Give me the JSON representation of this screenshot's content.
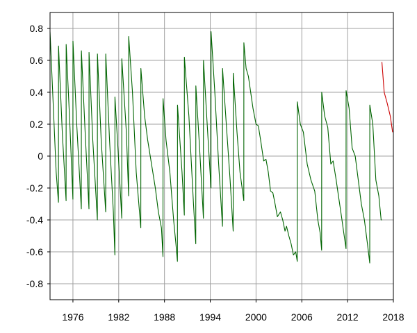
{
  "chart_data": {
    "type": "line",
    "title": "",
    "xlabel": "",
    "ylabel": "",
    "xlim": [
      1973,
      2018
    ],
    "ylim": [
      -0.9,
      0.9
    ],
    "grid": true,
    "legend": "none",
    "x_ticks": [
      1976,
      1982,
      1988,
      1994,
      2000,
      2006,
      2012,
      2018
    ],
    "x_tick_labels": [
      "1976",
      "1982",
      "1988",
      "1994",
      "2000",
      "2006",
      "2012",
      "2018"
    ],
    "y_ticks": [
      0.8,
      0.6,
      0.4,
      0.2,
      0,
      -0.2,
      -0.4,
      -0.6,
      -0.8
    ],
    "y_tick_labels": [
      "0.8",
      "0.6",
      "0.4",
      "0.2",
      "0",
      "-0.2",
      "-0.4",
      "-0.6",
      "-0.8"
    ],
    "series": [
      {
        "color": "#006400",
        "points": [
          [
            1973.0,
            0.78
          ],
          [
            1973.35,
            0.4
          ],
          [
            1973.8,
            -0.1
          ],
          [
            1974.1,
            -0.29
          ],
          [
            1974.11,
            0.69
          ],
          [
            1974.6,
            0.15
          ],
          [
            1975.1,
            -0.28
          ],
          [
            1975.11,
            0.7
          ],
          [
            1975.6,
            0.2
          ],
          [
            1976.0,
            -0.27
          ],
          [
            1976.01,
            0.72
          ],
          [
            1976.5,
            0.2
          ],
          [
            1977.1,
            -0.33
          ],
          [
            1977.11,
            0.66
          ],
          [
            1977.6,
            0.15
          ],
          [
            1978.1,
            -0.33
          ],
          [
            1978.11,
            0.65
          ],
          [
            1978.6,
            0.1
          ],
          [
            1979.2,
            -0.4
          ],
          [
            1979.21,
            0.64
          ],
          [
            1979.7,
            0.1
          ],
          [
            1980.3,
            -0.35
          ],
          [
            1980.31,
            0.64
          ],
          [
            1980.8,
            0.1
          ],
          [
            1981.3,
            -0.35
          ],
          [
            1981.5,
            -0.62
          ],
          [
            1981.51,
            0.37
          ],
          [
            1981.9,
            0.05
          ],
          [
            1982.4,
            -0.39
          ],
          [
            1982.41,
            0.61
          ],
          [
            1983.0,
            0.15
          ],
          [
            1983.3,
            -0.25
          ],
          [
            1983.31,
            0.75
          ],
          [
            1983.8,
            0.4
          ],
          [
            1984.3,
            -0.1
          ],
          [
            1984.9,
            -0.45
          ],
          [
            1984.91,
            0.55
          ],
          [
            1985.4,
            0.25
          ],
          [
            1985.8,
            0.1
          ],
          [
            1986.3,
            -0.05
          ],
          [
            1986.8,
            -0.2
          ],
          [
            1987.2,
            -0.35
          ],
          [
            1987.6,
            -0.45
          ],
          [
            1987.8,
            -0.63
          ],
          [
            1987.81,
            0.36
          ],
          [
            1988.2,
            0.1
          ],
          [
            1988.7,
            -0.1
          ],
          [
            1989.2,
            -0.4
          ],
          [
            1989.5,
            -0.55
          ],
          [
            1989.7,
            -0.66
          ],
          [
            1989.71,
            0.32
          ],
          [
            1990.3,
            -0.1
          ],
          [
            1990.6,
            -0.37
          ],
          [
            1990.61,
            0.62
          ],
          [
            1991.2,
            0.25
          ],
          [
            1991.8,
            -0.3
          ],
          [
            1992.1,
            -0.55
          ],
          [
            1992.11,
            0.44
          ],
          [
            1992.6,
            0.05
          ],
          [
            1993.1,
            -0.39
          ],
          [
            1993.11,
            0.6
          ],
          [
            1993.6,
            0.2
          ],
          [
            1994.1,
            -0.2
          ],
          [
            1994.11,
            0.78
          ],
          [
            1994.6,
            0.4
          ],
          [
            1995.1,
            -0.05
          ],
          [
            1995.6,
            -0.44
          ],
          [
            1995.61,
            0.55
          ],
          [
            1996.1,
            0.2
          ],
          [
            1996.6,
            -0.15
          ],
          [
            1997.0,
            -0.47
          ],
          [
            1997.01,
            0.52
          ],
          [
            1997.5,
            0.15
          ],
          [
            1997.9,
            -0.1
          ],
          [
            1998.4,
            -0.28
          ],
          [
            1998.41,
            0.71
          ],
          [
            1998.7,
            0.55
          ],
          [
            1999.0,
            0.5
          ],
          [
            1999.3,
            0.4
          ],
          [
            1999.6,
            0.3
          ],
          [
            2000.0,
            0.2
          ],
          [
            2000.3,
            0.19
          ],
          [
            2000.6,
            0.1
          ],
          [
            2001.0,
            -0.03
          ],
          [
            2001.3,
            -0.02
          ],
          [
            2001.6,
            -0.1
          ],
          [
            2001.9,
            -0.22
          ],
          [
            2002.2,
            -0.23
          ],
          [
            2002.5,
            -0.3
          ],
          [
            2002.8,
            -0.38
          ],
          [
            2003.2,
            -0.35
          ],
          [
            2003.5,
            -0.4
          ],
          [
            2003.8,
            -0.47
          ],
          [
            2004.0,
            -0.44
          ],
          [
            2004.3,
            -0.5
          ],
          [
            2004.6,
            -0.55
          ],
          [
            2004.9,
            -0.62
          ],
          [
            2005.2,
            -0.6
          ],
          [
            2005.4,
            -0.66
          ],
          [
            2005.41,
            0.34
          ],
          [
            2005.8,
            0.2
          ],
          [
            2006.2,
            0.15
          ],
          [
            2006.7,
            -0.05
          ],
          [
            2007.2,
            -0.15
          ],
          [
            2007.7,
            -0.22
          ],
          [
            2008.1,
            -0.4
          ],
          [
            2008.4,
            -0.48
          ],
          [
            2008.6,
            -0.59
          ],
          [
            2008.61,
            0.4
          ],
          [
            2009.0,
            0.25
          ],
          [
            2009.4,
            0.18
          ],
          [
            2009.8,
            -0.05
          ],
          [
            2010.1,
            -0.03
          ],
          [
            2010.5,
            -0.15
          ],
          [
            2010.8,
            -0.25
          ],
          [
            2011.2,
            -0.38
          ],
          [
            2011.5,
            -0.48
          ],
          [
            2011.8,
            -0.58
          ],
          [
            2011.81,
            0.41
          ],
          [
            2012.2,
            0.3
          ],
          [
            2012.6,
            0.05
          ],
          [
            2013.0,
            0.0
          ],
          [
            2013.4,
            -0.15
          ],
          [
            2013.8,
            -0.3
          ],
          [
            2014.2,
            -0.4
          ],
          [
            2014.6,
            -0.55
          ],
          [
            2014.9,
            -0.67
          ],
          [
            2014.91,
            0.32
          ],
          [
            2015.3,
            0.2
          ],
          [
            2015.7,
            -0.15
          ],
          [
            2016.1,
            -0.25
          ],
          [
            2016.4,
            -0.4
          ],
          [
            2016.5,
            -0.4
          ]
        ]
      },
      {
        "color": "#cc0000",
        "points": [
          [
            2016.5,
            0.59
          ],
          [
            2016.8,
            0.4
          ],
          [
            2017.2,
            0.33
          ],
          [
            2017.6,
            0.25
          ],
          [
            2017.9,
            0.15
          ]
        ]
      }
    ]
  }
}
